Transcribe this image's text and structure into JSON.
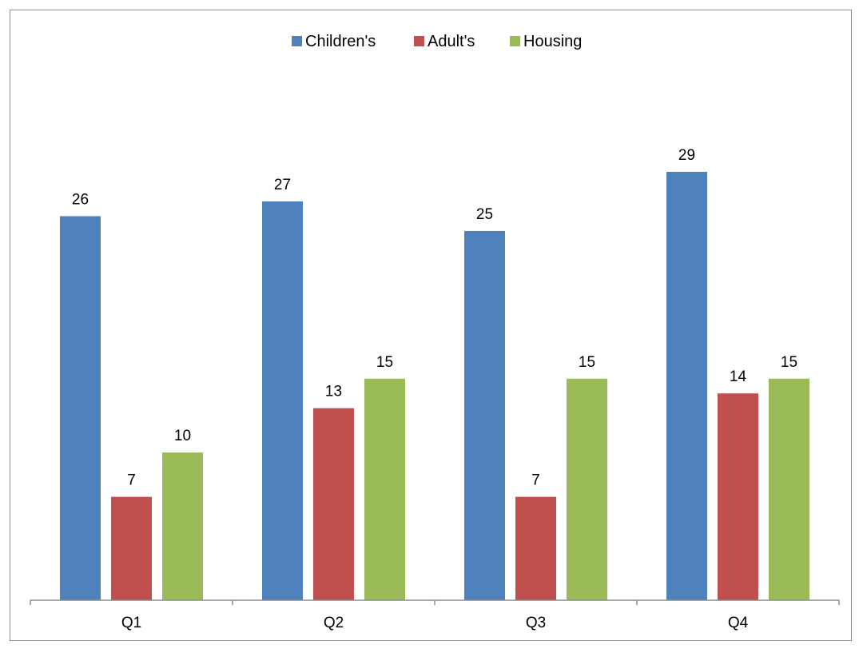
{
  "chart_data": {
    "type": "bar",
    "categories": [
      "Q1",
      "Q2",
      "Q3",
      "Q4"
    ],
    "series": [
      {
        "name": "Children's",
        "values": [
          26,
          27,
          25,
          29
        ],
        "color": "#4F81BD"
      },
      {
        "name": "Adult's",
        "values": [
          7,
          13,
          7,
          14
        ],
        "color": "#C0504D"
      },
      {
        "name": "Housing",
        "values": [
          10,
          15,
          15,
          15
        ],
        "color": "#9BBB59"
      }
    ],
    "title": "",
    "xlabel": "",
    "ylabel": "",
    "ylim": [
      0,
      29
    ],
    "legend_position": "top-center",
    "grid": false,
    "data_labels": true
  }
}
